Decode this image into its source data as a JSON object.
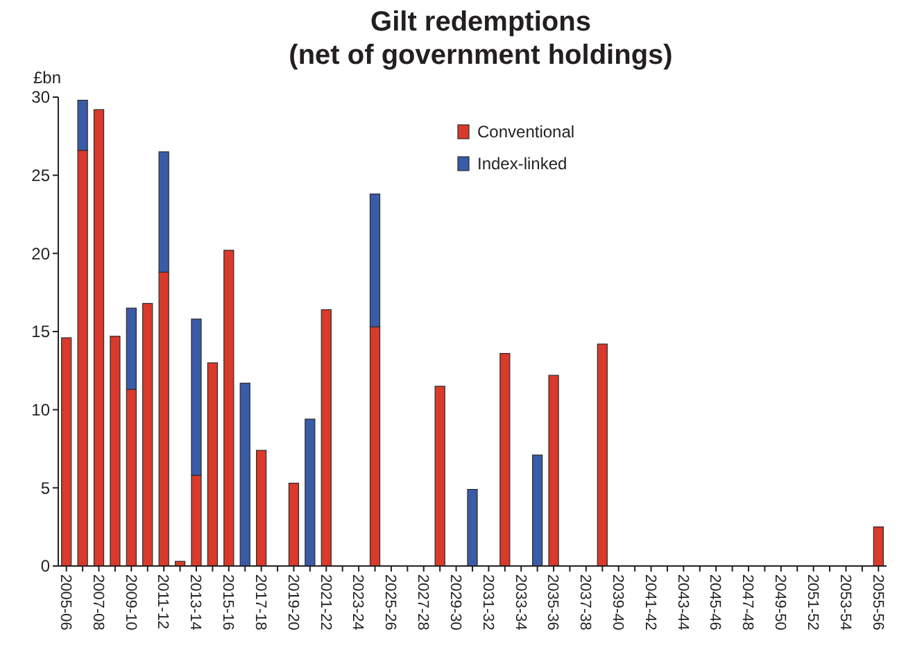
{
  "chart_data": {
    "type": "bar",
    "title": "Gilt redemptions\n(net of government holdings)",
    "ylabel": "£bn",
    "categories": [
      "2005-06",
      null,
      "2007-08",
      null,
      "2009-10",
      null,
      "2011-12",
      null,
      "2013-14",
      null,
      "2015-16",
      null,
      "2017-18",
      null,
      "2019-20",
      null,
      "2021-22",
      null,
      "2023-24",
      null,
      "2025-26",
      null,
      "2027-28",
      null,
      "2029-30",
      null,
      "2031-32",
      null,
      "2033-34",
      null,
      "2035-36",
      null,
      "2037-38",
      null,
      "2039-40",
      null,
      "2041-42",
      null,
      "2043-44",
      null,
      "2045-46",
      null,
      "2047-48",
      null,
      "2049-50",
      null,
      "2051-52",
      null,
      "2053-54",
      null,
      "2055-56"
    ],
    "series": [
      {
        "name": "Conventional",
        "color": "#d93a2b",
        "values": [
          14.6,
          26.6,
          29.2,
          14.7,
          11.3,
          16.8,
          18.8,
          0.3,
          5.8,
          13.0,
          20.2,
          null,
          7.4,
          null,
          5.3,
          null,
          16.4,
          null,
          null,
          15.3,
          null,
          null,
          null,
          11.5,
          null,
          null,
          null,
          13.6,
          null,
          null,
          12.2,
          null,
          null,
          14.2,
          null,
          null,
          null,
          null,
          null,
          null,
          null,
          null,
          null,
          null,
          null,
          null,
          null,
          null,
          null,
          null,
          2.5
        ]
      },
      {
        "name": "Index-linked",
        "color": "#3a5ba8",
        "values": [
          null,
          3.2,
          null,
          null,
          5.2,
          null,
          7.7,
          null,
          10.0,
          null,
          null,
          11.7,
          null,
          null,
          null,
          9.4,
          null,
          null,
          null,
          8.5,
          null,
          null,
          null,
          null,
          null,
          4.9,
          null,
          null,
          null,
          7.1,
          null,
          null,
          null,
          null,
          null,
          null,
          null,
          null,
          null,
          null,
          null,
          null,
          null,
          null,
          null,
          null,
          null,
          null,
          null,
          null,
          null
        ]
      }
    ],
    "stacked": true,
    "ylim": [
      0,
      30
    ],
    "yticks": [
      0,
      5,
      10,
      15,
      20,
      25,
      30
    ],
    "grid": false,
    "legend": "top"
  }
}
